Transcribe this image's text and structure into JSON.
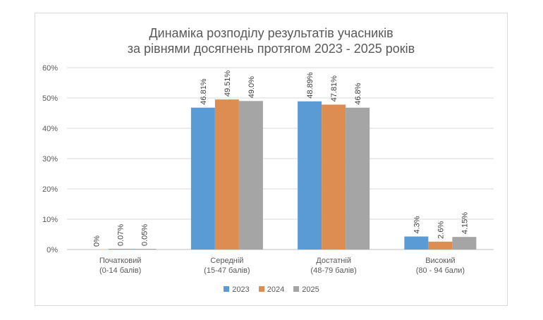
{
  "chart_data": {
    "type": "bar",
    "title_lines": [
      "Динаміка розподілу результатів учасників",
      "за рівнями досягнень протягом 2023 - 2025 років"
    ],
    "categories": [
      [
        "Початковий",
        "(0-14 балів)"
      ],
      [
        "Середній",
        "(15-47 балів)"
      ],
      [
        "Достатній",
        "(48-79 балів)"
      ],
      [
        "Високий",
        "(80 - 94 бали)"
      ]
    ],
    "series": [
      {
        "name": "2023",
        "color": "#5b9bd5",
        "values": [
          0,
          46.81,
          48.89,
          4.3
        ],
        "labels": [
          "0%",
          "46.81%",
          "48.89%",
          "4.3%"
        ]
      },
      {
        "name": "2024",
        "color": "#dd8d52",
        "values": [
          0.07,
          49.51,
          47.81,
          2.6
        ],
        "labels": [
          "0.07%",
          "49.51%",
          "47.81%",
          "2.6%"
        ]
      },
      {
        "name": "2025",
        "color": "#a5a5a5",
        "values": [
          0.05,
          49.0,
          46.8,
          4.15
        ],
        "labels": [
          "0.05%",
          "49.0%",
          "46.8%",
          "4.15%"
        ]
      }
    ],
    "y_ticks": [
      "0%",
      "10%",
      "20%",
      "30%",
      "40%",
      "50%",
      "60%"
    ],
    "ylim": [
      0,
      60
    ],
    "grid": true,
    "legend_position": "bottom"
  }
}
